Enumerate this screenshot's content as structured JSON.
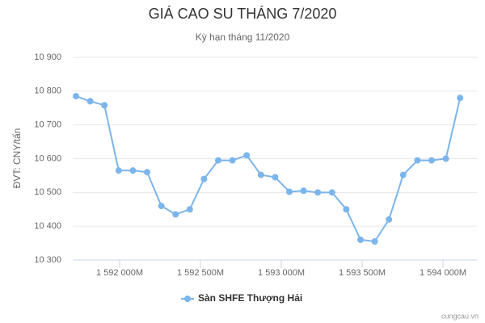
{
  "chart_data": {
    "type": "line",
    "title": "GIÁ CAO SU THÁNG 7/2020",
    "subtitle": "Kỳ hạn tháng 11/2020",
    "y_label": "ĐVT: CNY/tấn",
    "credits": "cungcau.vn",
    "x": [
      1591730,
      1591818,
      1591906,
      1591994,
      1592082,
      1592170,
      1592258,
      1592346,
      1592434,
      1592522,
      1592610,
      1592698,
      1592786,
      1592874,
      1592962,
      1593050,
      1593138,
      1593226,
      1593314,
      1593402,
      1593490,
      1593578,
      1593666,
      1593754,
      1593842,
      1593930,
      1594018,
      1594106
    ],
    "series": [
      {
        "name": "Sàn SHFE Thượng Hải",
        "color": "#7cb5ec",
        "values": [
          10785,
          10770,
          10758,
          10565,
          10565,
          10560,
          10460,
          10435,
          10450,
          10540,
          10595,
          10595,
          10610,
          10552,
          10545,
          10502,
          10505,
          10500,
          10500,
          10450,
          10360,
          10355,
          10420,
          10552,
          10595,
          10595,
          10600,
          10780
        ]
      }
    ],
    "xlim": [
      1591710,
      1594210
    ],
    "xticks": [
      {
        "value": 1592000,
        "label": "1 592 000M"
      },
      {
        "value": 1592500,
        "label": "1 592 500M"
      },
      {
        "value": 1593000,
        "label": "1 593 000M"
      },
      {
        "value": 1593500,
        "label": "1 593 500M"
      },
      {
        "value": 1594000,
        "label": "1 594 000M"
      }
    ],
    "ylim": [
      10300,
      10900
    ],
    "yticks": [
      {
        "value": 10300,
        "label": "10 300"
      },
      {
        "value": 10400,
        "label": "10 400"
      },
      {
        "value": 10500,
        "label": "10 500"
      },
      {
        "value": 10600,
        "label": "10 600"
      },
      {
        "value": 10700,
        "label": "10 700"
      },
      {
        "value": 10800,
        "label": "10 800"
      },
      {
        "value": 10900,
        "label": "10 900"
      }
    ],
    "grid": true
  }
}
